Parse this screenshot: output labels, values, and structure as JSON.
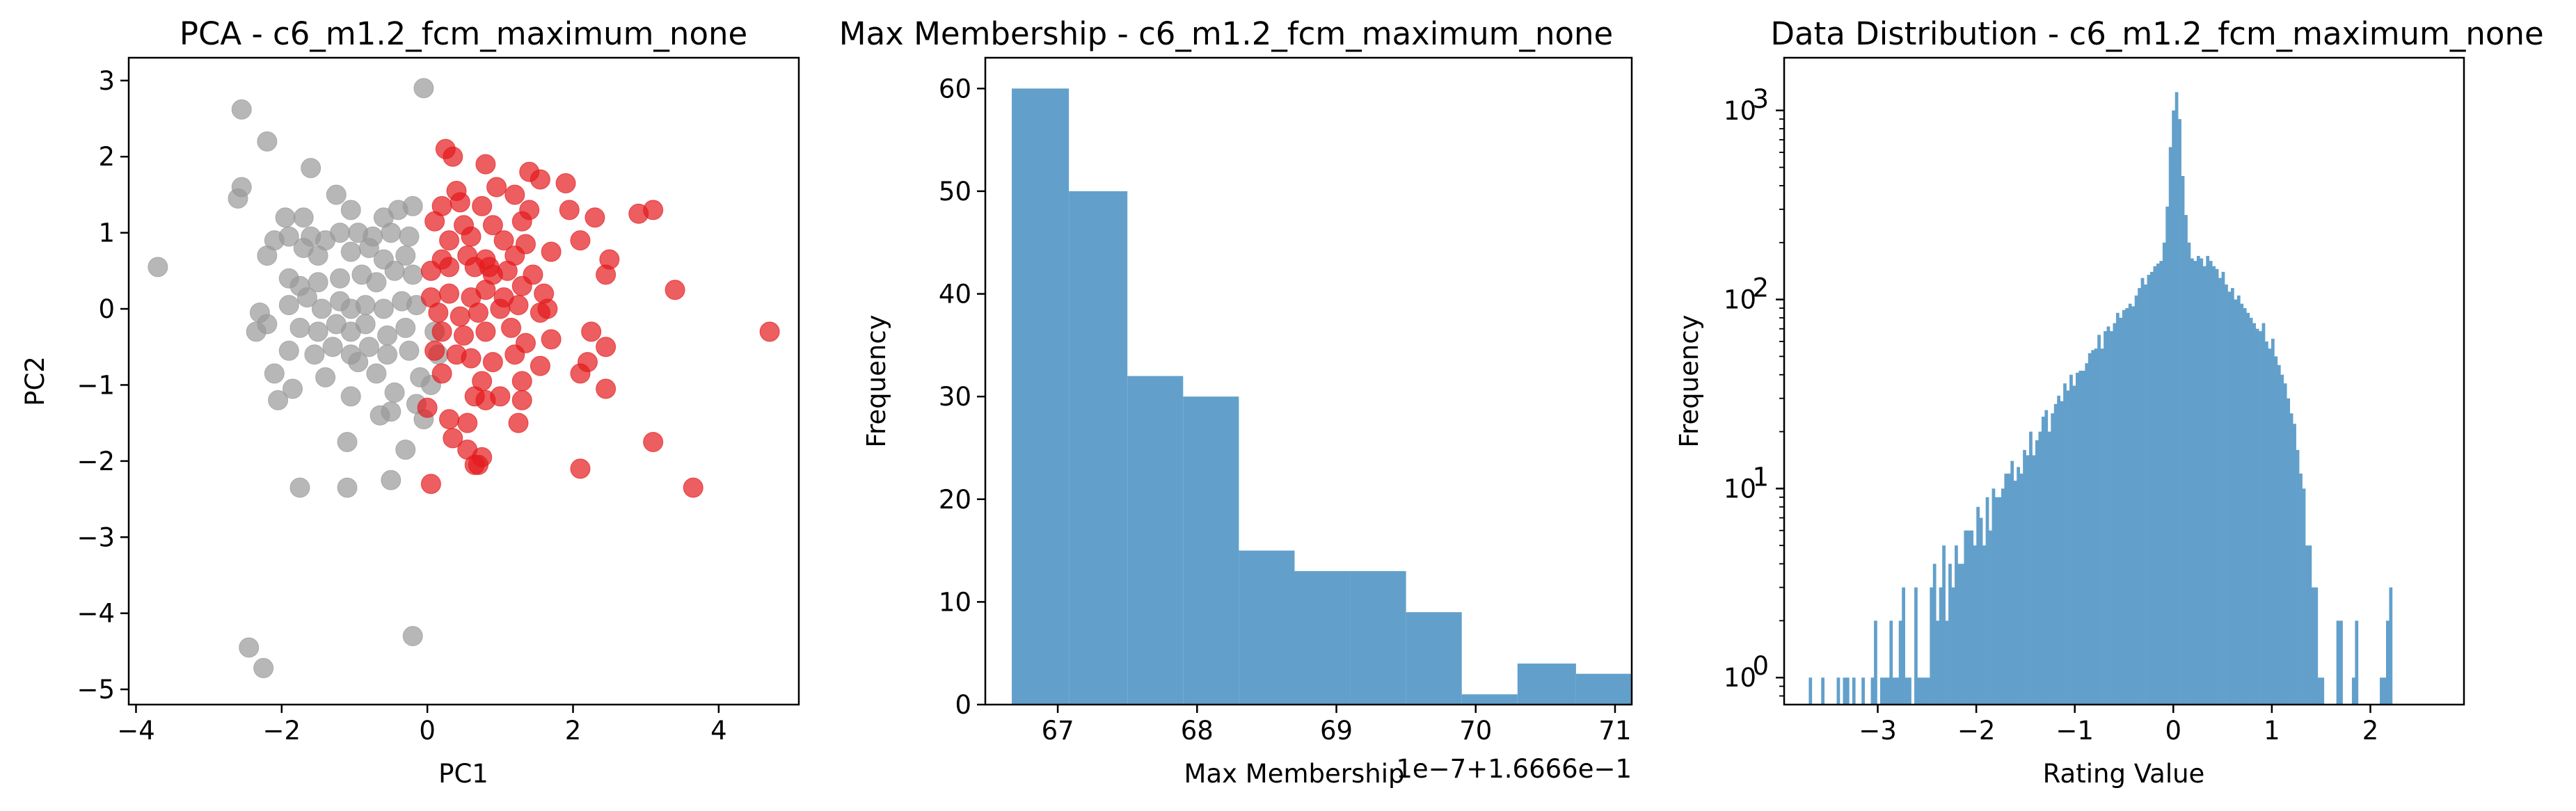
{
  "chart_data": [
    {
      "type": "scatter",
      "title": "PCA - c6_m1.2_fcm_maximum_none",
      "xlabel": "PC1",
      "ylabel": "PC2",
      "xlim": [
        -4.1,
        5.1
      ],
      "ylim": [
        -5.2,
        3.3
      ],
      "xticks": [
        -4,
        -2,
        0,
        2,
        4
      ],
      "xtick_labels": [
        "−4",
        "−2",
        "0",
        "2",
        "4"
      ],
      "yticks": [
        -5,
        -4,
        -3,
        -2,
        -1,
        0,
        1,
        2,
        3
      ],
      "ytick_labels": [
        "−5",
        "−4",
        "−3",
        "−2",
        "−1",
        "0",
        "1",
        "2",
        "3"
      ],
      "series": [
        {
          "color": "#999999",
          "points": [
            [
              -3.7,
              0.55
            ],
            [
              -2.55,
              2.62
            ],
            [
              -2.2,
              2.2
            ],
            [
              -0.05,
              2.9
            ],
            [
              -2.55,
              1.6
            ],
            [
              -2.6,
              1.45
            ],
            [
              -1.6,
              1.85
            ],
            [
              -1.95,
              1.2
            ],
            [
              -1.7,
              1.2
            ],
            [
              -1.25,
              1.5
            ],
            [
              -1.05,
              1.3
            ],
            [
              -0.6,
              1.2
            ],
            [
              -0.4,
              1.3
            ],
            [
              -0.2,
              1.35
            ],
            [
              -2.1,
              0.9
            ],
            [
              -1.9,
              0.95
            ],
            [
              -1.6,
              0.95
            ],
            [
              -1.4,
              0.9
            ],
            [
              -1.2,
              1.0
            ],
            [
              -0.95,
              1.0
            ],
            [
              -0.75,
              0.95
            ],
            [
              -0.5,
              1.0
            ],
            [
              -0.25,
              0.95
            ],
            [
              -2.2,
              0.7
            ],
            [
              -1.7,
              0.8
            ],
            [
              -1.5,
              0.7
            ],
            [
              -1.05,
              0.75
            ],
            [
              -0.8,
              0.8
            ],
            [
              -0.6,
              0.65
            ],
            [
              -0.3,
              0.7
            ],
            [
              -1.9,
              0.4
            ],
            [
              -1.75,
              0.3
            ],
            [
              -1.5,
              0.35
            ],
            [
              -1.2,
              0.4
            ],
            [
              -0.9,
              0.45
            ],
            [
              -0.7,
              0.35
            ],
            [
              -0.45,
              0.5
            ],
            [
              -0.2,
              0.45
            ],
            [
              -2.3,
              -0.05
            ],
            [
              -2.2,
              -0.2
            ],
            [
              -2.35,
              -0.3
            ],
            [
              -1.9,
              0.05
            ],
            [
              -1.65,
              0.15
            ],
            [
              -1.45,
              0.0
            ],
            [
              -1.2,
              0.1
            ],
            [
              -1.05,
              0.0
            ],
            [
              -0.85,
              0.05
            ],
            [
              -0.6,
              0.0
            ],
            [
              -0.35,
              0.1
            ],
            [
              -0.15,
              0.05
            ],
            [
              -1.75,
              -0.25
            ],
            [
              -1.5,
              -0.3
            ],
            [
              -1.25,
              -0.2
            ],
            [
              -1.05,
              -0.3
            ],
            [
              -0.85,
              -0.2
            ],
            [
              -0.55,
              -0.35
            ],
            [
              -0.3,
              -0.25
            ],
            [
              -1.9,
              -0.55
            ],
            [
              -1.55,
              -0.6
            ],
            [
              -1.3,
              -0.5
            ],
            [
              -1.05,
              -0.6
            ],
            [
              -0.8,
              -0.5
            ],
            [
              -0.55,
              -0.6
            ],
            [
              -0.25,
              -0.55
            ],
            [
              -2.1,
              -0.85
            ],
            [
              -1.85,
              -1.05
            ],
            [
              -1.4,
              -0.9
            ],
            [
              -1.05,
              -1.15
            ],
            [
              -0.7,
              -0.85
            ],
            [
              -0.45,
              -1.1
            ],
            [
              -0.1,
              -0.9
            ],
            [
              -2.05,
              -1.2
            ],
            [
              -1.1,
              -1.75
            ],
            [
              -0.5,
              -1.35
            ],
            [
              -0.15,
              -1.25
            ],
            [
              -0.05,
              -1.45
            ],
            [
              -0.3,
              -1.85
            ],
            [
              -1.75,
              -2.35
            ],
            [
              -1.1,
              -2.35
            ],
            [
              -0.5,
              -2.25
            ],
            [
              -0.2,
              -4.3
            ],
            [
              -2.45,
              -4.45
            ],
            [
              -2.25,
              -4.72
            ],
            [
              -0.95,
              -0.7
            ],
            [
              -0.65,
              -1.4
            ],
            [
              0.1,
              -0.3
            ],
            [
              0.05,
              -1.0
            ],
            [
              0.15,
              -0.6
            ]
          ]
        },
        {
          "color": "#e41a1c",
          "points": [
            [
              0.25,
              2.1
            ],
            [
              0.35,
              2.0
            ],
            [
              0.8,
              1.9
            ],
            [
              1.4,
              1.8
            ],
            [
              1.55,
              1.7
            ],
            [
              1.9,
              1.65
            ],
            [
              0.4,
              1.55
            ],
            [
              0.95,
              1.6
            ],
            [
              1.2,
              1.5
            ],
            [
              0.2,
              1.35
            ],
            [
              0.45,
              1.4
            ],
            [
              0.75,
              1.35
            ],
            [
              1.4,
              1.3
            ],
            [
              1.95,
              1.3
            ],
            [
              2.9,
              1.25
            ],
            [
              3.1,
              1.3
            ],
            [
              2.3,
              1.2
            ],
            [
              0.1,
              1.15
            ],
            [
              0.5,
              1.1
            ],
            [
              0.9,
              1.1
            ],
            [
              1.3,
              1.15
            ],
            [
              0.3,
              0.9
            ],
            [
              0.6,
              0.95
            ],
            [
              1.05,
              0.9
            ],
            [
              1.35,
              0.85
            ],
            [
              2.1,
              0.9
            ],
            [
              0.2,
              0.65
            ],
            [
              0.55,
              0.7
            ],
            [
              0.8,
              0.65
            ],
            [
              1.2,
              0.7
            ],
            [
              1.7,
              0.75
            ],
            [
              2.5,
              0.65
            ],
            [
              0.05,
              0.5
            ],
            [
              0.3,
              0.55
            ],
            [
              0.65,
              0.55
            ],
            [
              0.9,
              0.45
            ],
            [
              1.1,
              0.5
            ],
            [
              1.45,
              0.45
            ],
            [
              2.45,
              0.45
            ],
            [
              3.4,
              0.25
            ],
            [
              0.05,
              0.15
            ],
            [
              0.3,
              0.2
            ],
            [
              0.6,
              0.15
            ],
            [
              0.8,
              0.25
            ],
            [
              1.05,
              0.15
            ],
            [
              1.3,
              0.3
            ],
            [
              1.6,
              0.2
            ],
            [
              0.15,
              -0.05
            ],
            [
              0.45,
              -0.1
            ],
            [
              0.7,
              -0.05
            ],
            [
              1.0,
              0.0
            ],
            [
              1.25,
              0.05
            ],
            [
              1.55,
              -0.05
            ],
            [
              1.65,
              0.0
            ],
            [
              0.2,
              -0.3
            ],
            [
              0.5,
              -0.35
            ],
            [
              0.8,
              -0.3
            ],
            [
              1.15,
              -0.25
            ],
            [
              1.35,
              -0.45
            ],
            [
              1.7,
              -0.4
            ],
            [
              2.25,
              -0.3
            ],
            [
              2.45,
              -0.5
            ],
            [
              4.7,
              -0.3
            ],
            [
              0.1,
              -0.55
            ],
            [
              0.4,
              -0.6
            ],
            [
              0.6,
              -0.65
            ],
            [
              0.9,
              -0.7
            ],
            [
              1.2,
              -0.6
            ],
            [
              1.55,
              -0.75
            ],
            [
              2.2,
              -0.7
            ],
            [
              0.2,
              -0.85
            ],
            [
              0.75,
              -0.95
            ],
            [
              1.3,
              -0.95
            ],
            [
              2.1,
              -0.85
            ],
            [
              2.45,
              -1.05
            ],
            [
              0.65,
              -1.15
            ],
            [
              0.8,
              -1.2
            ],
            [
              1.0,
              -1.15
            ],
            [
              1.3,
              -1.2
            ],
            [
              1.25,
              -1.5
            ],
            [
              0.0,
              -1.3
            ],
            [
              0.3,
              -1.45
            ],
            [
              0.55,
              -1.5
            ],
            [
              0.35,
              -1.7
            ],
            [
              0.55,
              -1.85
            ],
            [
              0.75,
              -1.95
            ],
            [
              0.7,
              -2.05
            ],
            [
              0.65,
              -2.05
            ],
            [
              3.1,
              -1.75
            ],
            [
              2.1,
              -2.1
            ],
            [
              3.65,
              -2.35
            ],
            [
              0.05,
              -2.3
            ],
            [
              0.85,
              0.55
            ]
          ]
        }
      ]
    },
    {
      "type": "bar",
      "title": "Max Membership - c6_m1.2_fcm_maximum_none",
      "xlabel": "Max Membership",
      "ylabel": "Frequency",
      "offset_text": "1e−7+1.6666e−1",
      "color": "#62a0cb",
      "bins": [
        {
          "x0": 66.67,
          "x1": 67.08,
          "value": 60
        },
        {
          "x0": 67.08,
          "x1": 67.5,
          "value": 50
        },
        {
          "x0": 67.5,
          "x1": 67.9,
          "value": 32
        },
        {
          "x0": 67.9,
          "x1": 68.3,
          "value": 30
        },
        {
          "x0": 68.3,
          "x1": 68.7,
          "value": 15
        },
        {
          "x0": 68.7,
          "x1": 69.1,
          "value": 13
        },
        {
          "x0": 69.1,
          "x1": 69.5,
          "value": 13
        },
        {
          "x0": 69.5,
          "x1": 69.9,
          "value": 9
        },
        {
          "x0": 69.9,
          "x1": 70.3,
          "value": 1
        },
        {
          "x0": 70.3,
          "x1": 70.72,
          "value": 4
        },
        {
          "x0": 70.72,
          "x1": 71.12,
          "value": 3
        }
      ],
      "xlim": [
        66.48,
        71.12
      ],
      "ylim": [
        0,
        63
      ],
      "xticks": [
        67,
        68,
        69,
        70,
        71
      ],
      "xtick_labels": [
        "67",
        "68",
        "69",
        "70",
        "71"
      ],
      "yticks": [
        0,
        10,
        20,
        30,
        40,
        50,
        60
      ],
      "ytick_labels": [
        "0",
        "10",
        "20",
        "30",
        "40",
        "50",
        "60"
      ]
    },
    {
      "type": "bar",
      "title": "Data Distribution - c6_m1.2_fcm_maximum_none",
      "xlabel": "Rating Value",
      "ylabel": "Frequency",
      "scale_y": "log",
      "color": "#62a0cb",
      "xlim": [
        -3.95,
        2.95
      ],
      "ylim": [
        0.72,
        1900
      ],
      "xticks": [
        -3,
        -2,
        -1,
        0,
        1,
        2
      ],
      "xtick_labels": [
        "−3",
        "−2",
        "−1",
        "0",
        "1",
        "2"
      ],
      "yticks": [
        1,
        10,
        100,
        1000
      ],
      "ytick_labels": [
        "10",
        "10",
        "10",
        "10"
      ],
      "ytick_exponents": [
        "0",
        "1",
        "2",
        "3"
      ],
      "bin_start": -3.7,
      "bin_width": 0.0315,
      "values": [
        1,
        0,
        0,
        0,
        1,
        0,
        0,
        0,
        0,
        1,
        0,
        1,
        1,
        0,
        1,
        0,
        0,
        1,
        0,
        0,
        1,
        2,
        0,
        1,
        1,
        1,
        2,
        1,
        1,
        2,
        3,
        1,
        1,
        0,
        3,
        1,
        1,
        1,
        1,
        3,
        4,
        2,
        3,
        5,
        2,
        4,
        3,
        5,
        4,
        4,
        6,
        6,
        6,
        5,
        8,
        7,
        5,
        9,
        6,
        10,
        9,
        9,
        10,
        12,
        12,
        14,
        11,
        13,
        12,
        16,
        15,
        20,
        15,
        18,
        20,
        24,
        26,
        20,
        25,
        28,
        31,
        29,
        36,
        33,
        40,
        35,
        41,
        42,
        42,
        46,
        52,
        54,
        55,
        65,
        55,
        68,
        72,
        68,
        75,
        85,
        80,
        88,
        90,
        95,
        92,
        105,
        115,
        130,
        120,
        135,
        140,
        150,
        155,
        160,
        200,
        310,
        640,
        1000,
        1250,
        900,
        450,
        280,
        200,
        165,
        160,
        170,
        165,
        150,
        170,
        160,
        150,
        145,
        130,
        140,
        120,
        110,
        115,
        100,
        105,
        95,
        90,
        85,
        80,
        75,
        70,
        68,
        75,
        60,
        55,
        62,
        50,
        45,
        40,
        36,
        30,
        25,
        22,
        16,
        12,
        10,
        5,
        5,
        3,
        3,
        1,
        1,
        0,
        0,
        0,
        0,
        2,
        2,
        0,
        0,
        0,
        1,
        2,
        0,
        0,
        0,
        0,
        0,
        0,
        0,
        1,
        1,
        2,
        3
      ]
    }
  ]
}
